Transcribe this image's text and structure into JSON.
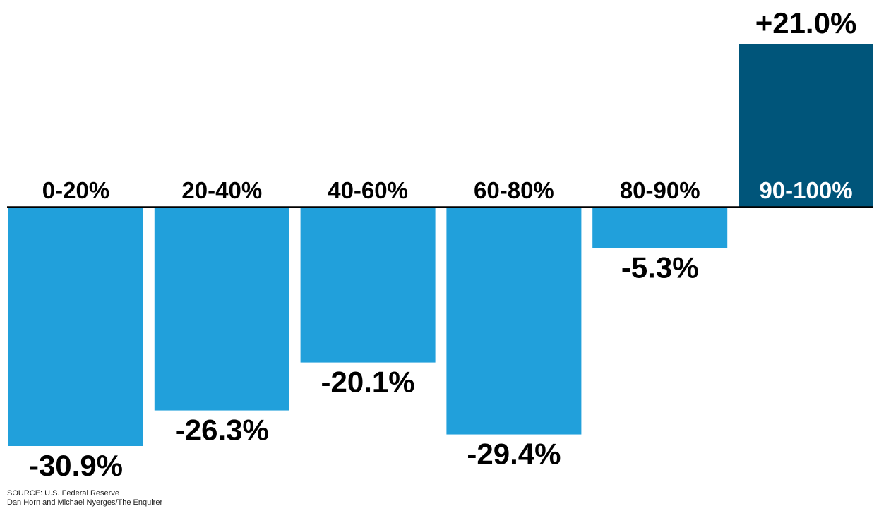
{
  "chart_data": {
    "type": "bar",
    "categories": [
      "0-20%",
      "20-40%",
      "40-60%",
      "60-80%",
      "80-90%",
      "90-100%"
    ],
    "values": [
      -30.9,
      -26.3,
      -20.1,
      -29.4,
      -5.3,
      21.0
    ],
    "value_labels": [
      "-30.9%",
      "-26.3%",
      "-20.1%",
      "-29.4%",
      "-5.3%",
      "+21.0%"
    ],
    "colors": [
      "#21a0db",
      "#21a0db",
      "#21a0db",
      "#21a0db",
      "#21a0db",
      "#00557a"
    ],
    "source": "SOURCE: U.S. Federal Reserve",
    "credit": "Dan Horn and Michael Nyerges/The Enquirer"
  }
}
